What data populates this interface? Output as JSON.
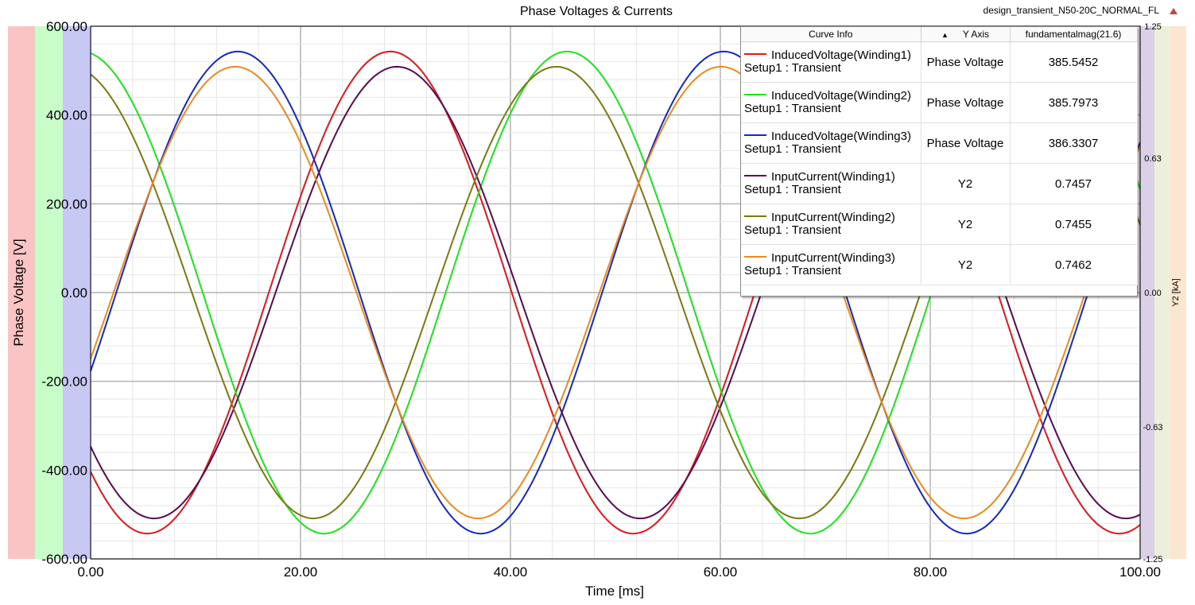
{
  "chart_data": {
    "type": "line",
    "title": "Phase Voltages & Currents",
    "design_name": "design_transient_N50-20C_NORMAL_FL",
    "xlabel": "Time [ms]",
    "ylabel": "Phase Voltage [V]",
    "y2label": "Y2 [kA]",
    "xlim": [
      0,
      100
    ],
    "ylim": [
      -600,
      600
    ],
    "y2lim": [
      -1.25,
      1.25
    ],
    "x_ticks": [
      "0.00",
      "20.00",
      "40.00",
      "60.00",
      "80.00",
      "100.00"
    ],
    "y_ticks": [
      "600.00",
      "400.00",
      "200.00",
      "0.00",
      "-200.00",
      "-400.00",
      "-600.00"
    ],
    "y2_ticks": [
      "1.25",
      "0.63",
      "0.00",
      "-0.63",
      "-1.25"
    ],
    "grid": true,
    "legend": {
      "headers": {
        "curve_info": "Curve Info",
        "y_axis": "Y Axis",
        "value": "fundamentalmag(21.6)"
      },
      "entries": [
        {
          "name": "InducedVoltage(Winding1)",
          "setup": "Setup1 : Transient",
          "y_axis": "Phase Voltage",
          "value": "385.5452",
          "color": "#e8141c"
        },
        {
          "name": "InducedVoltage(Winding2)",
          "setup": "Setup1 : Transient",
          "y_axis": "Phase Voltage",
          "value": "385.7973",
          "color": "#18e818"
        },
        {
          "name": "InducedVoltage(Winding3)",
          "setup": "Setup1 : Transient",
          "y_axis": "Phase Voltage",
          "value": "386.3307",
          "color": "#1428c8"
        },
        {
          "name": "InputCurrent(Winding1)",
          "setup": "Setup1 : Transient",
          "y_axis": "Y2",
          "value": "0.7457",
          "color": "#5a0a50"
        },
        {
          "name": "InputCurrent(Winding2)",
          "setup": "Setup1 : Transient",
          "y_axis": "Y2",
          "value": "0.7455",
          "color": "#7a7a10"
        },
        {
          "name": "InputCurrent(Winding3)",
          "setup": "Setup1 : Transient",
          "y_axis": "Y2",
          "value": "0.7462",
          "color": "#f0881e"
        }
      ]
    },
    "series": [
      {
        "name": "InducedVoltage(Winding1)",
        "axis": "y",
        "period_ms": 46.3,
        "amplitude": 543,
        "phase_deg": -132,
        "color": "#e8141c"
      },
      {
        "name": "InducedVoltage(Winding2)",
        "axis": "y",
        "period_ms": 46.3,
        "amplitude": 543,
        "phase_deg": 97,
        "color": "#18e818"
      },
      {
        "name": "InducedVoltage(Winding3)",
        "axis": "y",
        "period_ms": 46.3,
        "amplitude": 543,
        "phase_deg": -19,
        "color": "#1428c8"
      },
      {
        "name": "InputCurrent(Winding1)",
        "axis": "y2",
        "period_ms": 46.3,
        "amplitude": 1.06,
        "phase_deg": -137,
        "color": "#5a0a50"
      },
      {
        "name": "InputCurrent(Winding2)",
        "axis": "y2",
        "period_ms": 46.3,
        "amplitude": 1.06,
        "phase_deg": 105,
        "color": "#7a7a10"
      },
      {
        "name": "InputCurrent(Winding3)",
        "axis": "y2",
        "period_ms": 46.3,
        "amplitude": 1.06,
        "phase_deg": -17,
        "color": "#f0881e"
      }
    ],
    "bands": {
      "left": [
        "#fbc4c4",
        "#c8fcc8",
        "#c8c8f4"
      ],
      "right": [
        "#dcd0e8",
        "#eeeedc",
        "#fde6d0"
      ]
    }
  }
}
